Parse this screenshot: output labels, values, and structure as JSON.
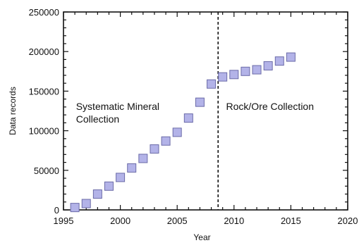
{
  "chart_data": {
    "type": "scatter",
    "xlabel": "Year",
    "ylabel": "Data records",
    "xlim": [
      1995,
      2020
    ],
    "ylim": [
      0,
      250000
    ],
    "x_ticks": [
      1995,
      2000,
      2005,
      2010,
      2015,
      2020
    ],
    "y_ticks": [
      0,
      50000,
      100000,
      150000,
      200000,
      250000
    ],
    "grid": false,
    "marker": "square",
    "marker_color": "#b3b3e8",
    "marker_edge_color": "#6b6ba8",
    "x": [
      1996,
      1997,
      1998,
      1999,
      2000,
      2001,
      2002,
      2003,
      2004,
      2005,
      2006,
      2007,
      2008,
      2009,
      2010,
      2011,
      2012,
      2013,
      2014,
      2015
    ],
    "y": [
      3000,
      8000,
      20000,
      30000,
      41000,
      53000,
      65000,
      77000,
      87000,
      98000,
      116000,
      136000,
      159000,
      168000,
      171000,
      175000,
      177000,
      182000,
      188000,
      193000
    ],
    "vertical_line": {
      "x": 2008.6,
      "style": "dashed"
    },
    "annotations": [
      {
        "lines": [
          "Systematic Mineral",
          "Collection"
        ],
        "x": 1996.1,
        "y": 130000
      },
      {
        "lines": [
          "Rock/Ore Collection"
        ],
        "x": 2009.3,
        "y": 130000
      }
    ]
  }
}
